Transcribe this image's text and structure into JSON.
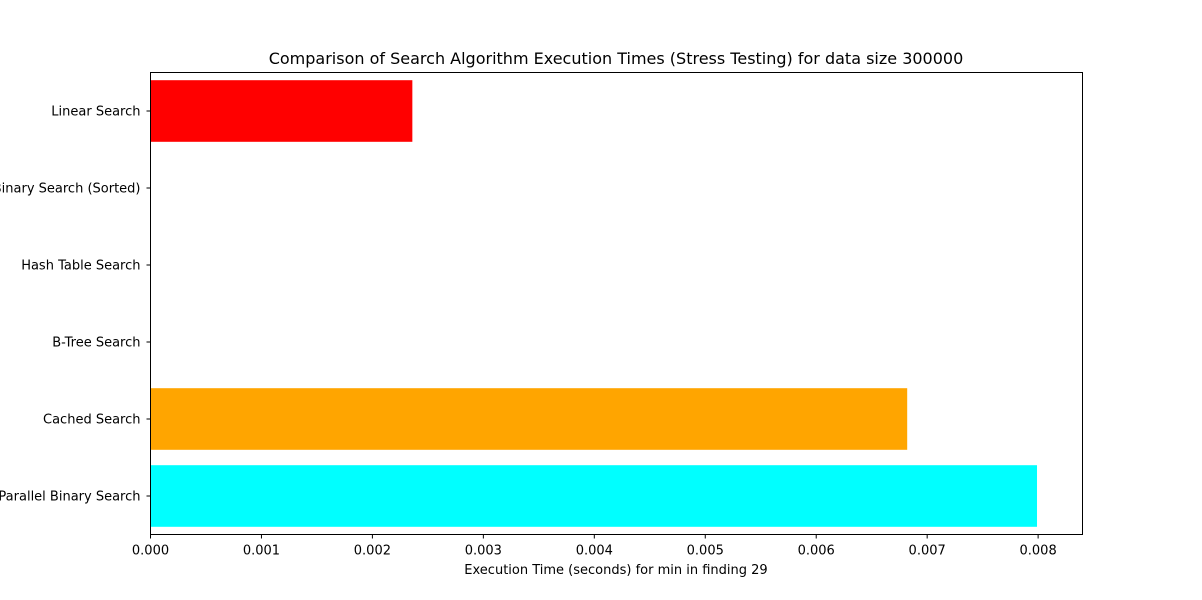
{
  "chart_data": {
    "type": "bar",
    "orientation": "horizontal",
    "title": "Comparison of Search Algorithm Execution Times (Stress Testing) for data size 300000",
    "xlabel": "Execution Time (seconds) for min in finding 29",
    "ylabel": "",
    "categories": [
      "Linear Search",
      "Binary Search (Sorted)",
      "Hash Table Search",
      "B-Tree Search",
      "Cached Search",
      "Parallel Binary Search"
    ],
    "values": [
      0.00236,
      0.0,
      0.0,
      0.0,
      0.00682,
      0.00799
    ],
    "colors": [
      "#ff0000",
      "#0000ff",
      "#008000",
      "#800080",
      "#ffa500",
      "#00ffff"
    ],
    "xlim": [
      0,
      0.0084
    ],
    "xticks": [
      0.0,
      0.001,
      0.002,
      0.003,
      0.004,
      0.005,
      0.006,
      0.007,
      0.008
    ],
    "xtick_labels": [
      "0.000",
      "0.001",
      "0.002",
      "0.003",
      "0.004",
      "0.005",
      "0.006",
      "0.007",
      "0.008"
    ],
    "grid": false,
    "legend": "none"
  }
}
